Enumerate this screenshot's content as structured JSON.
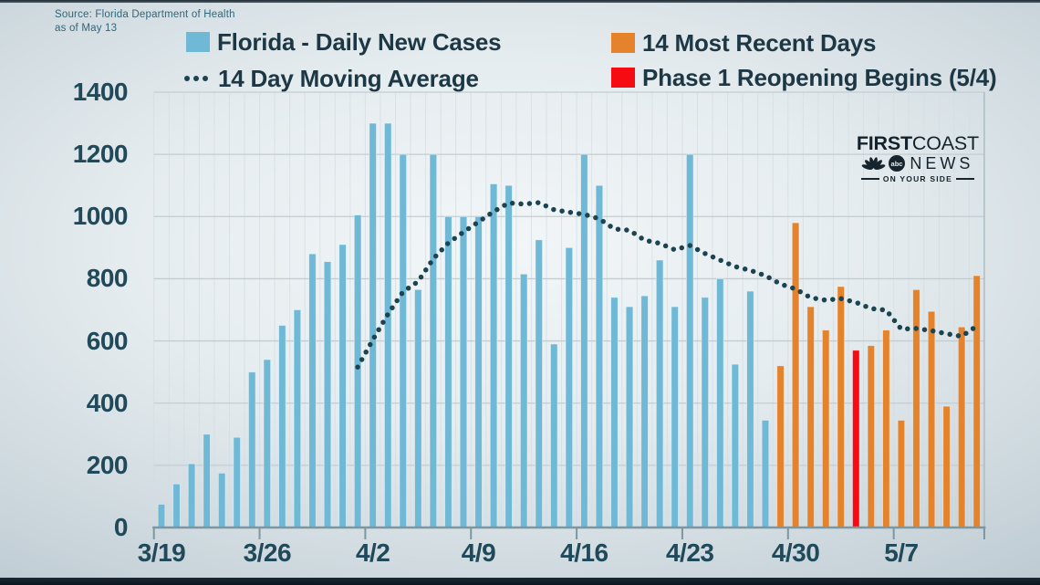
{
  "source": {
    "line1": "Source: Florida Department of Health",
    "line2": "as of May 13"
  },
  "legend": {
    "daily_cases": "Florida - Daily New Cases",
    "moving_average": "14 Day Moving Average",
    "recent_days": "14 Most Recent Days",
    "phase1": "Phase 1 Reopening Begins (5/4)"
  },
  "branding": {
    "first": "FIRST",
    "coast": "COAST",
    "news": "NEWS",
    "abc": "abc",
    "tagline": "ON YOUR SIDE"
  },
  "colors": {
    "daily_bar": "#6fb8d6",
    "recent_bar": "#e5822c",
    "phase1_bar": "#f60b12",
    "ma_dot": "#1b4350",
    "axis_text": "#20495a",
    "gridline": "#c2cdd3",
    "axis_line": "#7d97a1"
  },
  "chart_data": {
    "type": "bar",
    "title": "",
    "xlabel": "",
    "ylabel": "",
    "grid": true,
    "legend_position": "top",
    "ylim": [
      0,
      1400
    ],
    "yticks": [
      0,
      200,
      400,
      600,
      800,
      1000,
      1200,
      1400
    ],
    "xtick_labels": [
      "3/19",
      "3/26",
      "4/2",
      "4/9",
      "4/16",
      "4/23",
      "4/30",
      "5/7"
    ],
    "xtick_indices": [
      0,
      7,
      14,
      21,
      28,
      35,
      42,
      49
    ],
    "dates": [
      "3/19",
      "3/20",
      "3/21",
      "3/22",
      "3/23",
      "3/24",
      "3/25",
      "3/26",
      "3/27",
      "3/28",
      "3/29",
      "3/30",
      "3/31",
      "4/1",
      "4/2",
      "4/3",
      "4/4",
      "4/5",
      "4/6",
      "4/7",
      "4/8",
      "4/9",
      "4/10",
      "4/11",
      "4/12",
      "4/13",
      "4/14",
      "4/15",
      "4/16",
      "4/17",
      "4/18",
      "4/19",
      "4/20",
      "4/21",
      "4/22",
      "4/23",
      "4/24",
      "4/25",
      "4/26",
      "4/27",
      "4/28",
      "4/29",
      "4/30",
      "5/1",
      "5/2",
      "5/3",
      "5/4",
      "5/5",
      "5/6",
      "5/7",
      "5/8",
      "5/9",
      "5/10",
      "5/11",
      "5/12"
    ],
    "values": [
      75,
      140,
      205,
      300,
      175,
      290,
      500,
      540,
      650,
      700,
      880,
      855,
      910,
      1005,
      1300,
      1300,
      1200,
      765,
      1200,
      1000,
      1000,
      1000,
      1105,
      1100,
      815,
      925,
      590,
      900,
      1200,
      1100,
      740,
      710,
      745,
      860,
      710,
      1200,
      740,
      800,
      525,
      760,
      345,
      520,
      980,
      710,
      635,
      775,
      570,
      585,
      635,
      345,
      765,
      695,
      390,
      645,
      810
    ],
    "recent_start_index": 41,
    "phase1_index": 46,
    "moving_average": {
      "name": "14 Day Moving Average",
      "start_index": 13,
      "values": [
        516,
        604,
        686,
        758,
        791,
        864,
        915,
        950,
        983,
        1016,
        1044,
        1040,
        1045,
        1022,
        1014,
        1007,
        993,
        960,
        956,
        924,
        914,
        893,
        907,
        881,
        860,
        839,
        827,
        810,
        783,
        767,
        739,
        731,
        736,
        724,
        704,
        699,
        638,
        640,
        633,
        623,
        615,
        648
      ]
    }
  }
}
